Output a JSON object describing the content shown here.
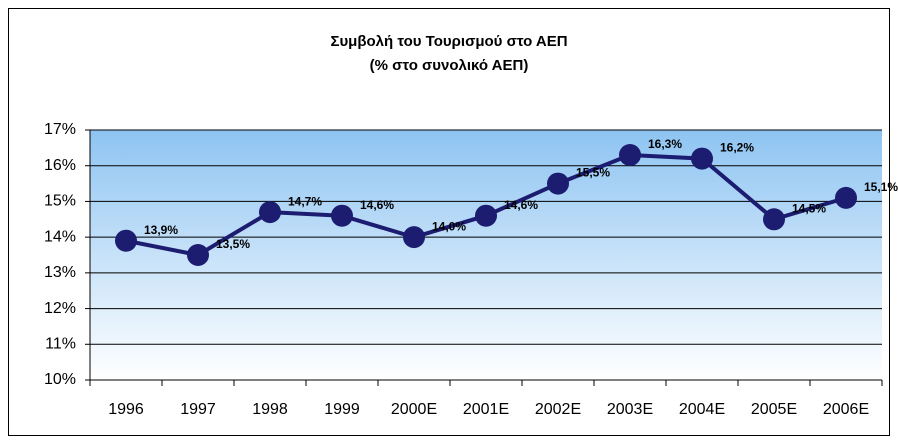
{
  "chart_data": {
    "type": "line",
    "title": "Συμβολή του Τουρισμού στο ΑΕΠ",
    "subtitle": "(% στο συνολικό ΑΕΠ)",
    "categories": [
      "1996",
      "1997",
      "1998",
      "1999",
      "2000E",
      "2001E",
      "2002E",
      "2003E",
      "2004E",
      "2005E",
      "2006E"
    ],
    "series": [
      {
        "name": "ΑΕΠ",
        "color": "#1c1c70",
        "values": [
          13.9,
          13.5,
          14.7,
          14.6,
          14.0,
          14.6,
          15.5,
          16.3,
          16.2,
          14.5,
          15.1
        ],
        "value_labels": [
          "13,9%",
          "13,5%",
          "14,7%",
          "14,6%",
          "14,0%",
          "14,6%",
          "15,5%",
          "16,3%",
          "16,2%",
          "14,5%",
          "15,1%"
        ]
      }
    ],
    "ylim": [
      10,
      17
    ],
    "yticks": [
      {
        "value": 10,
        "label": "10%"
      },
      {
        "value": 11,
        "label": "11%"
      },
      {
        "value": 12,
        "label": "12%"
      },
      {
        "value": 13,
        "label": "13%"
      },
      {
        "value": 14,
        "label": "14%"
      },
      {
        "value": 15,
        "label": "15%"
      },
      {
        "value": 16,
        "label": "16%"
      },
      {
        "value": 17,
        "label": "17%"
      }
    ],
    "grid": true
  }
}
